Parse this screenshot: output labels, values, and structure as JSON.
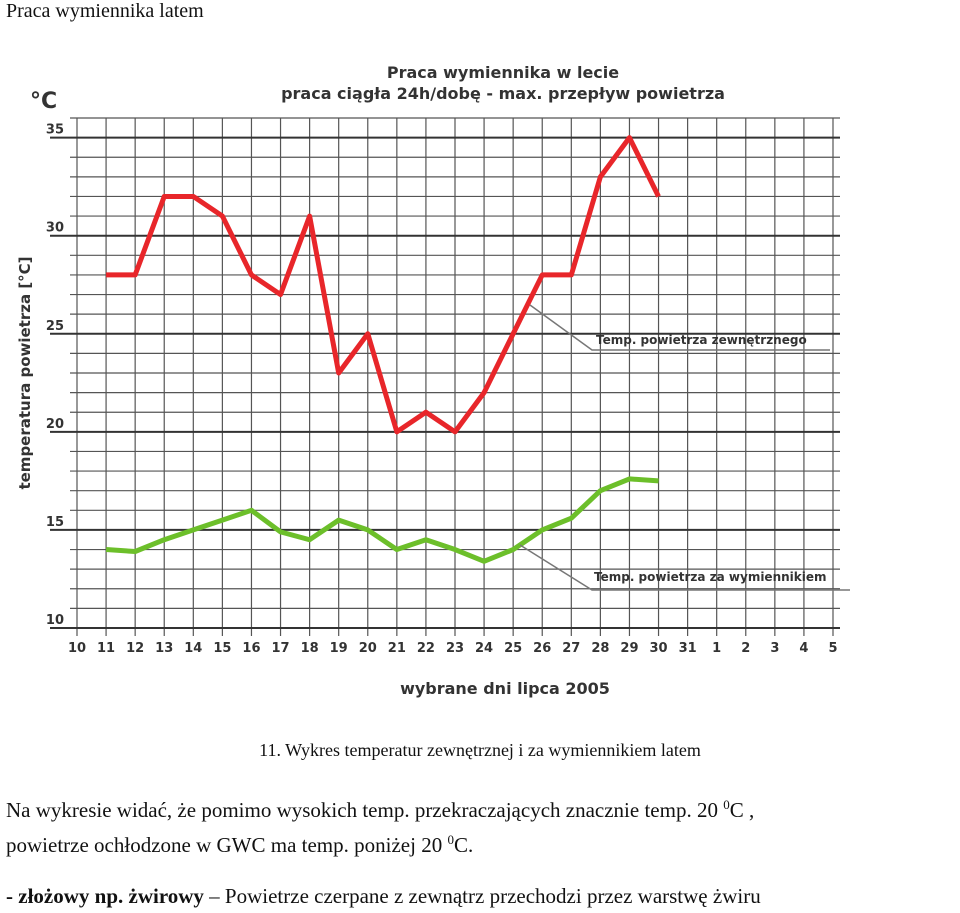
{
  "heading": "Praca wymiennika latem",
  "chart_data": {
    "type": "line",
    "title": "Praca wymiennika w lecie",
    "subtitle": "praca ciągła 24h/dobę - max. przepływ powietrza",
    "unit_label": "°C",
    "y_label": "temperatura powietrza [°C]",
    "x_label": "wybrane dni lipca 2005",
    "categories": [
      "10",
      "11",
      "12",
      "13",
      "14",
      "15",
      "16",
      "17",
      "18",
      "19",
      "20",
      "21",
      "22",
      "23",
      "24",
      "25",
      "26",
      "27",
      "28",
      "29",
      "30",
      "31",
      "1",
      "2",
      "3",
      "4",
      "5"
    ],
    "series": [
      {
        "name": "Temp. powietrza zewnętrznego",
        "color": "#e8262a",
        "values": [
          null,
          28,
          28,
          32,
          32,
          31,
          28,
          27,
          31,
          23,
          25,
          20,
          21,
          20,
          22,
          25,
          28,
          28,
          33,
          35,
          32,
          null,
          null,
          null,
          null,
          null,
          null
        ]
      },
      {
        "name": "Temp. powietrza za wymiennikiem",
        "color": "#6cbf2a",
        "values": [
          null,
          14,
          13.9,
          14.5,
          15,
          15.5,
          16,
          14.9,
          14.5,
          15.5,
          15,
          14,
          14.5,
          14,
          13.4,
          14,
          15,
          15.6,
          17,
          17.6,
          17.5,
          null,
          null,
          null,
          null,
          null,
          null
        ]
      }
    ],
    "ylim": [
      10,
      36
    ],
    "yticks": [
      10,
      15,
      20,
      25,
      30,
      35
    ],
    "y_minor_ticks": [
      11,
      12,
      13,
      14,
      16,
      17,
      18,
      19,
      21,
      22,
      23,
      24,
      26,
      27,
      28,
      29,
      31,
      32,
      33,
      34,
      36
    ],
    "grid": true
  },
  "caption": "11. Wykres temperatur zewnętrznej i za wymiennikiem latem",
  "paragraph": [
    "Na wykresie widać, że pomimo wysokich temp. przekraczających znacznie temp. 20 ",
    "0",
    "C , ",
    "powietrze ochłodzone w GWC ma temp. poniżej 20 ",
    "0",
    "C."
  ],
  "bullet": {
    "bold": "- złożowy np. żwirowy",
    "text": " – Powietrze czerpane z zewnątrz przechodzi przez warstwę żwiru"
  }
}
